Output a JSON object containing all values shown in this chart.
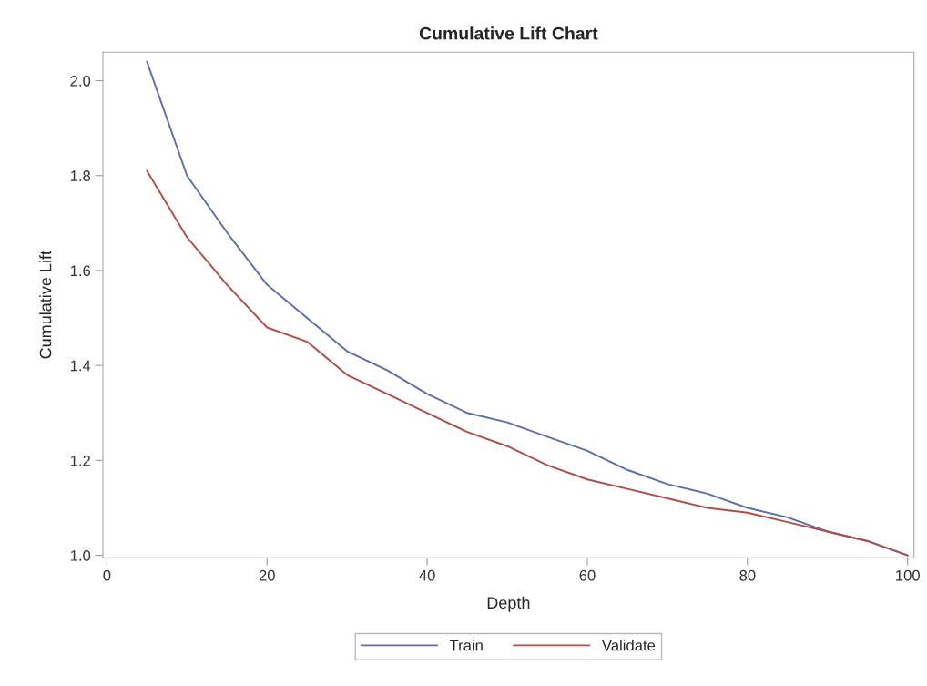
{
  "chart_data": {
    "type": "line",
    "title": "Cumulative Lift Chart",
    "xlabel": "Depth",
    "ylabel": "Cumulative Lift",
    "x": [
      5,
      10,
      15,
      20,
      25,
      30,
      35,
      40,
      45,
      50,
      55,
      60,
      65,
      70,
      75,
      80,
      85,
      90,
      95,
      100
    ],
    "series": [
      {
        "name": "Train",
        "color": "#5a6eb0",
        "values": [
          2.04,
          1.8,
          1.68,
          1.57,
          1.5,
          1.43,
          1.39,
          1.34,
          1.3,
          1.28,
          1.25,
          1.22,
          1.18,
          1.15,
          1.13,
          1.1,
          1.08,
          1.05,
          1.03,
          1.0
        ]
      },
      {
        "name": "Validate",
        "color": "#b24d45",
        "values": [
          1.81,
          1.67,
          1.57,
          1.48,
          1.45,
          1.38,
          1.34,
          1.3,
          1.26,
          1.23,
          1.19,
          1.16,
          1.14,
          1.12,
          1.1,
          1.09,
          1.07,
          1.05,
          1.03,
          1.0
        ]
      }
    ],
    "xlim": [
      -0.5,
      100.8
    ],
    "xticks": [
      0,
      20,
      40,
      60,
      80,
      100
    ],
    "ylim": [
      0.995,
      2.06
    ],
    "yticks": [
      {
        "value": 1.0,
        "label": "1.0"
      },
      {
        "value": 1.2,
        "label": "1.2"
      },
      {
        "value": 1.4,
        "label": "1.4"
      },
      {
        "value": 1.6,
        "label": "1.6"
      },
      {
        "value": 1.8,
        "label": "1.8"
      },
      {
        "value": 2.0,
        "label": "2.0"
      }
    ],
    "grid": false,
    "legend": "bottom",
    "marker": "none",
    "line_style": "solid"
  }
}
